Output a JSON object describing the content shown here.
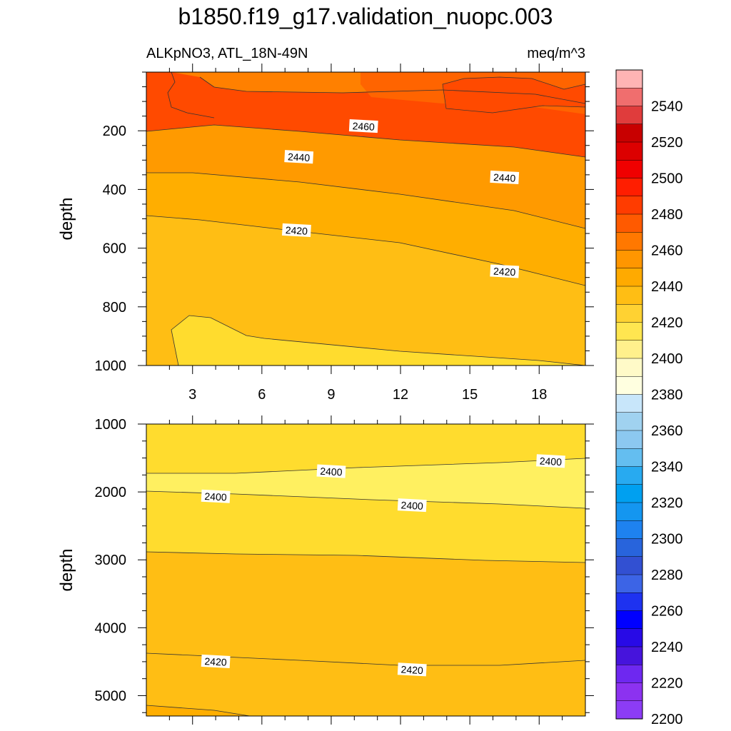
{
  "title": "b1850.f19_g17.validation_nuopc.003",
  "subtitle_left": "ALKpNO3, ATL_18N-49N",
  "subtitle_right": "meq/m^3",
  "chart_data": [
    {
      "type": "heatmap",
      "panel": "upper",
      "ylabel": "depth",
      "xlim": [
        1,
        20
      ],
      "ylim": [
        1000,
        0
      ],
      "x_ticks": [
        "3",
        "6",
        "9",
        "12",
        "15",
        "18"
      ],
      "y_ticks": [
        "200",
        "400",
        "600",
        "800",
        "1000"
      ],
      "contour_labels": [
        {
          "text": "2460",
          "x": 10.4,
          "y": 185
        },
        {
          "text": "2440",
          "x": 7.6,
          "y": 290
        },
        {
          "text": "2440",
          "x": 16.5,
          "y": 360
        },
        {
          "text": "2420",
          "x": 7.5,
          "y": 540
        },
        {
          "text": "2420",
          "x": 16.5,
          "y": 680
        }
      ],
      "regions": [
        {
          "value": 2450,
          "color": "#FF8000",
          "label": "2440-2460"
        },
        {
          "value": 2470,
          "color": "#FF6400",
          "label": "2460-2480"
        },
        {
          "value": 2482,
          "color": "#FF4A00",
          "label": "2480-2500"
        },
        {
          "value": 2435,
          "color": "#FF9A00",
          "label": "2430-2440"
        },
        {
          "value": 2425,
          "color": "#FFAE00",
          "label": "2420-2430"
        },
        {
          "value": 2415,
          "color": "#FFBE14",
          "label": "2410-2420"
        },
        {
          "value": 2405,
          "color": "#FFDC2E",
          "label": "2400-2410"
        }
      ]
    },
    {
      "type": "heatmap",
      "panel": "lower",
      "ylabel": "depth",
      "xlim": [
        1,
        20
      ],
      "ylim": [
        5300,
        1000
      ],
      "y_ticks": [
        "1000",
        "2000",
        "3000",
        "4000",
        "5000"
      ],
      "contour_labels": [
        {
          "text": "2400",
          "x": 9.0,
          "y": 1700
        },
        {
          "text": "2400",
          "x": 18.5,
          "y": 1550
        },
        {
          "text": "2400",
          "x": 4.0,
          "y": 2070
        },
        {
          "text": "2400",
          "x": 12.5,
          "y": 2200
        },
        {
          "text": "2420",
          "x": 4.0,
          "y": 4500
        },
        {
          "text": "2420",
          "x": 12.5,
          "y": 4620
        }
      ],
      "regions": [
        {
          "value": 2395,
          "color": "#FFF060",
          "label": "2390-2400"
        },
        {
          "value": 2405,
          "color": "#FFDC2E",
          "label": "2400-2410"
        },
        {
          "value": 2415,
          "color": "#FFBE14",
          "label": "2410-2420"
        },
        {
          "value": 2425,
          "color": "#FFAE00",
          "label": "2420-2430"
        }
      ]
    }
  ],
  "colorbar": {
    "labels": [
      "2540",
      "2520",
      "2500",
      "2480",
      "2460",
      "2440",
      "2420",
      "2400",
      "2380",
      "2360",
      "2340",
      "2320",
      "2300",
      "2280",
      "2260",
      "2240",
      "2220",
      "2200"
    ],
    "colors": [
      "#FFB4B4",
      "#F06E6E",
      "#E03C3C",
      "#C80000",
      "#DC0000",
      "#F00000",
      "#FF1E00",
      "#FF3C00",
      "#FF5A00",
      "#FF7800",
      "#FF9600",
      "#FFAA00",
      "#FFBE14",
      "#FFD232",
      "#FFE650",
      "#FFF08C",
      "#FFFAC8",
      "#FFFFE0",
      "#C8E6FA",
      "#A0D2F0",
      "#8CC8F0",
      "#64BEF0",
      "#28AAF0",
      "#00A0F0",
      "#1496F0",
      "#1E82F0",
      "#2864DC",
      "#3250D2",
      "#3C64E6",
      "#1E32F0",
      "#0000FF",
      "#280AE6",
      "#4614DC",
      "#6E28F0",
      "#8C32F0",
      "#8C3CF5"
    ]
  }
}
